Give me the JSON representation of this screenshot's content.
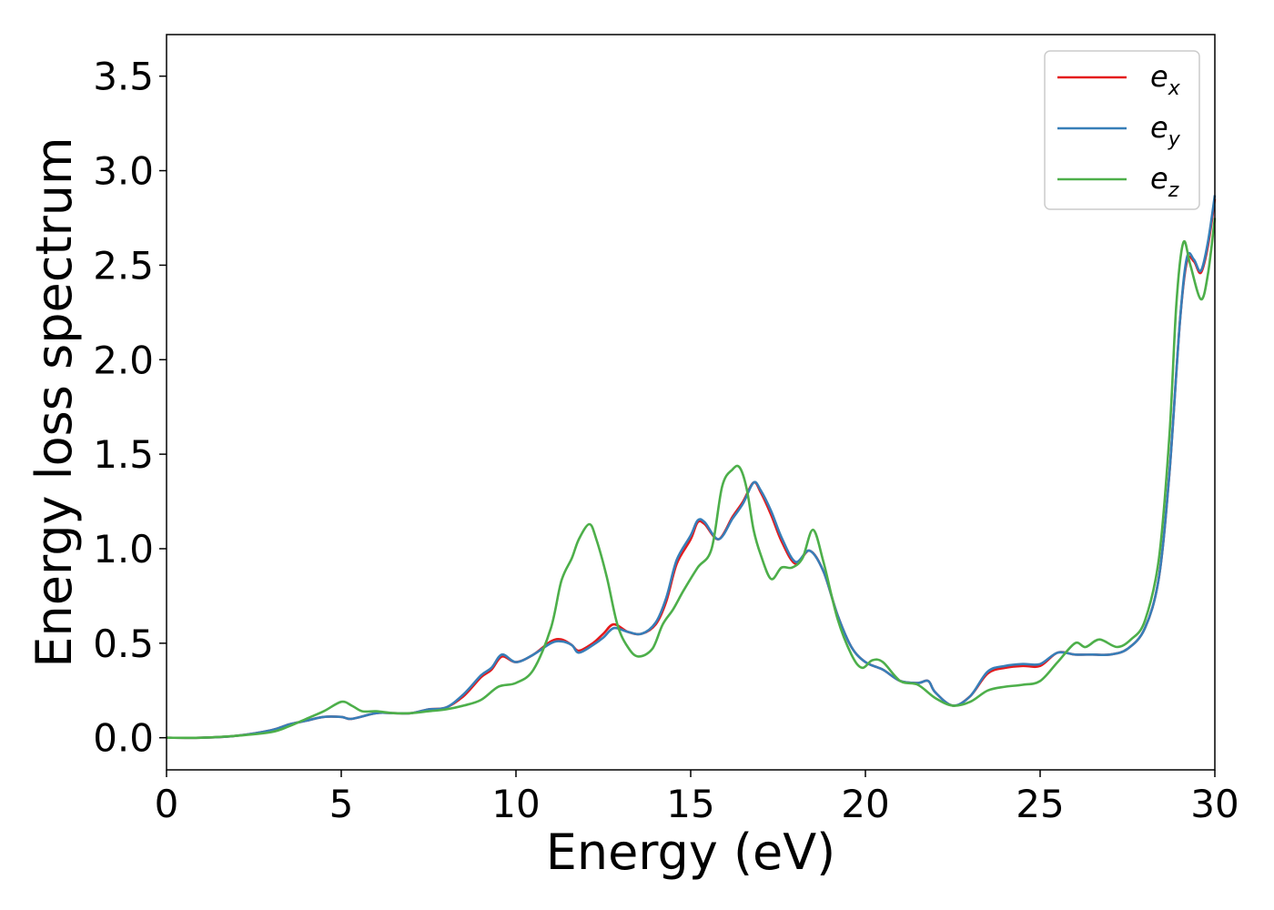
{
  "chart_data": {
    "type": "line",
    "xlabel": "Energy (eV)",
    "ylabel": "Energy loss spectrum",
    "xlim": [
      0,
      30
    ],
    "ylim": [
      -0.17,
      3.72
    ],
    "x_ticks": [
      "0",
      "5",
      "10",
      "15",
      "20",
      "25",
      "30"
    ],
    "y_ticks": [
      "0.0",
      "0.5",
      "1.0",
      "1.5",
      "2.0",
      "2.5",
      "3.0",
      "3.5"
    ],
    "grid": false,
    "legend_position": "top-right",
    "series": [
      {
        "name": "e_x",
        "base": "e",
        "sub": "x",
        "color": "#e41a1c",
        "points": [
          [
            0,
            0
          ],
          [
            1,
            0
          ],
          [
            2,
            0.01
          ],
          [
            3,
            0.04
          ],
          [
            3.5,
            0.07
          ],
          [
            4,
            0.09
          ],
          [
            4.5,
            0.11
          ],
          [
            5,
            0.11
          ],
          [
            5.3,
            0.1
          ],
          [
            6,
            0.13
          ],
          [
            6.5,
            0.13
          ],
          [
            7,
            0.13
          ],
          [
            7.5,
            0.15
          ],
          [
            8,
            0.16
          ],
          [
            8.5,
            0.22
          ],
          [
            9,
            0.32
          ],
          [
            9.3,
            0.36
          ],
          [
            9.6,
            0.43
          ],
          [
            10,
            0.4
          ],
          [
            10.5,
            0.44
          ],
          [
            11,
            0.51
          ],
          [
            11.3,
            0.52
          ],
          [
            11.6,
            0.49
          ],
          [
            11.8,
            0.46
          ],
          [
            12.2,
            0.5
          ],
          [
            12.5,
            0.55
          ],
          [
            12.8,
            0.6
          ],
          [
            13.2,
            0.56
          ],
          [
            13.6,
            0.55
          ],
          [
            14,
            0.6
          ],
          [
            14.3,
            0.72
          ],
          [
            14.6,
            0.92
          ],
          [
            15,
            1.05
          ],
          [
            15.2,
            1.14
          ],
          [
            15.4,
            1.13
          ],
          [
            15.8,
            1.05
          ],
          [
            16.2,
            1.17
          ],
          [
            16.5,
            1.25
          ],
          [
            16.8,
            1.35
          ],
          [
            17,
            1.3
          ],
          [
            17.3,
            1.18
          ],
          [
            17.6,
            1.04
          ],
          [
            18,
            0.92
          ],
          [
            18.4,
            0.99
          ],
          [
            18.8,
            0.88
          ],
          [
            19.2,
            0.65
          ],
          [
            19.6,
            0.48
          ],
          [
            20,
            0.4
          ],
          [
            20.5,
            0.36
          ],
          [
            21,
            0.3
          ],
          [
            21.5,
            0.29
          ],
          [
            21.8,
            0.3
          ],
          [
            22,
            0.24
          ],
          [
            22.5,
            0.17
          ],
          [
            23,
            0.22
          ],
          [
            23.5,
            0.34
          ],
          [
            24,
            0.37
          ],
          [
            24.5,
            0.38
          ],
          [
            25,
            0.38
          ],
          [
            25.5,
            0.45
          ],
          [
            26,
            0.44
          ],
          [
            26.5,
            0.44
          ],
          [
            27,
            0.44
          ],
          [
            27.5,
            0.47
          ],
          [
            28,
            0.58
          ],
          [
            28.4,
            0.85
          ],
          [
            28.7,
            1.4
          ],
          [
            29,
            2.2
          ],
          [
            29.2,
            2.52
          ],
          [
            29.4,
            2.52
          ],
          [
            29.6,
            2.46
          ],
          [
            29.8,
            2.6
          ],
          [
            30,
            2.85
          ]
        ]
      },
      {
        "name": "e_y",
        "base": "e",
        "sub": "y",
        "color": "#377eb8",
        "points": [
          [
            0,
            0
          ],
          [
            1,
            0
          ],
          [
            2,
            0.01
          ],
          [
            3,
            0.04
          ],
          [
            3.5,
            0.07
          ],
          [
            4,
            0.09
          ],
          [
            4.5,
            0.11
          ],
          [
            5,
            0.11
          ],
          [
            5.3,
            0.1
          ],
          [
            6,
            0.13
          ],
          [
            6.5,
            0.13
          ],
          [
            7,
            0.13
          ],
          [
            7.5,
            0.15
          ],
          [
            8,
            0.16
          ],
          [
            8.5,
            0.23
          ],
          [
            9,
            0.33
          ],
          [
            9.3,
            0.37
          ],
          [
            9.6,
            0.44
          ],
          [
            10,
            0.4
          ],
          [
            10.5,
            0.44
          ],
          [
            11,
            0.5
          ],
          [
            11.3,
            0.51
          ],
          [
            11.6,
            0.49
          ],
          [
            11.8,
            0.45
          ],
          [
            12.2,
            0.49
          ],
          [
            12.5,
            0.53
          ],
          [
            12.8,
            0.58
          ],
          [
            13.2,
            0.56
          ],
          [
            13.6,
            0.55
          ],
          [
            14,
            0.61
          ],
          [
            14.3,
            0.74
          ],
          [
            14.6,
            0.94
          ],
          [
            15,
            1.07
          ],
          [
            15.2,
            1.15
          ],
          [
            15.4,
            1.14
          ],
          [
            15.8,
            1.05
          ],
          [
            16.2,
            1.16
          ],
          [
            16.5,
            1.24
          ],
          [
            16.8,
            1.35
          ],
          [
            17,
            1.31
          ],
          [
            17.3,
            1.2
          ],
          [
            17.6,
            1.06
          ],
          [
            18,
            0.93
          ],
          [
            18.4,
            0.99
          ],
          [
            18.8,
            0.88
          ],
          [
            19.2,
            0.65
          ],
          [
            19.6,
            0.48
          ],
          [
            20,
            0.4
          ],
          [
            20.5,
            0.36
          ],
          [
            21,
            0.3
          ],
          [
            21.5,
            0.29
          ],
          [
            21.8,
            0.3
          ],
          [
            22,
            0.24
          ],
          [
            22.5,
            0.17
          ],
          [
            23,
            0.22
          ],
          [
            23.5,
            0.35
          ],
          [
            24,
            0.38
          ],
          [
            24.5,
            0.39
          ],
          [
            25,
            0.39
          ],
          [
            25.5,
            0.45
          ],
          [
            26,
            0.44
          ],
          [
            26.5,
            0.44
          ],
          [
            27,
            0.44
          ],
          [
            27.5,
            0.47
          ],
          [
            28,
            0.58
          ],
          [
            28.4,
            0.85
          ],
          [
            28.7,
            1.4
          ],
          [
            29,
            2.2
          ],
          [
            29.2,
            2.54
          ],
          [
            29.4,
            2.53
          ],
          [
            29.6,
            2.47
          ],
          [
            29.8,
            2.62
          ],
          [
            30,
            2.87
          ]
        ]
      },
      {
        "name": "e_z",
        "base": "e",
        "sub": "z",
        "color": "#4daf4a",
        "points": [
          [
            0,
            0
          ],
          [
            1,
            0
          ],
          [
            2,
            0.01
          ],
          [
            3,
            0.03
          ],
          [
            3.5,
            0.06
          ],
          [
            4,
            0.1
          ],
          [
            4.5,
            0.14
          ],
          [
            5,
            0.19
          ],
          [
            5.3,
            0.17
          ],
          [
            5.6,
            0.14
          ],
          [
            6,
            0.14
          ],
          [
            6.5,
            0.13
          ],
          [
            7,
            0.13
          ],
          [
            7.5,
            0.14
          ],
          [
            8,
            0.15
          ],
          [
            8.5,
            0.17
          ],
          [
            9,
            0.2
          ],
          [
            9.5,
            0.27
          ],
          [
            10,
            0.29
          ],
          [
            10.5,
            0.36
          ],
          [
            11,
            0.58
          ],
          [
            11.3,
            0.83
          ],
          [
            11.6,
            0.95
          ],
          [
            11.8,
            1.05
          ],
          [
            12.1,
            1.13
          ],
          [
            12.3,
            1.05
          ],
          [
            12.6,
            0.85
          ],
          [
            12.9,
            0.6
          ],
          [
            13.2,
            0.48
          ],
          [
            13.5,
            0.43
          ],
          [
            13.9,
            0.47
          ],
          [
            14.2,
            0.6
          ],
          [
            14.5,
            0.68
          ],
          [
            14.8,
            0.78
          ],
          [
            15.2,
            0.9
          ],
          [
            15.6,
            1.0
          ],
          [
            15.9,
            1.33
          ],
          [
            16.2,
            1.42
          ],
          [
            16.4,
            1.43
          ],
          [
            16.6,
            1.32
          ],
          [
            16.8,
            1.1
          ],
          [
            17,
            0.97
          ],
          [
            17.3,
            0.84
          ],
          [
            17.6,
            0.9
          ],
          [
            17.9,
            0.9
          ],
          [
            18.2,
            0.95
          ],
          [
            18.5,
            1.1
          ],
          [
            18.8,
            0.93
          ],
          [
            19.2,
            0.63
          ],
          [
            19.6,
            0.44
          ],
          [
            19.9,
            0.37
          ],
          [
            20.2,
            0.41
          ],
          [
            20.5,
            0.4
          ],
          [
            21,
            0.3
          ],
          [
            21.5,
            0.28
          ],
          [
            22,
            0.21
          ],
          [
            22.5,
            0.17
          ],
          [
            23,
            0.19
          ],
          [
            23.5,
            0.25
          ],
          [
            24,
            0.27
          ],
          [
            24.5,
            0.28
          ],
          [
            25,
            0.3
          ],
          [
            25.5,
            0.4
          ],
          [
            26,
            0.5
          ],
          [
            26.3,
            0.48
          ],
          [
            26.7,
            0.52
          ],
          [
            27.2,
            0.48
          ],
          [
            27.6,
            0.52
          ],
          [
            28,
            0.62
          ],
          [
            28.4,
            0.95
          ],
          [
            28.7,
            1.6
          ],
          [
            28.9,
            2.3
          ],
          [
            29.1,
            2.62
          ],
          [
            29.3,
            2.5
          ],
          [
            29.6,
            2.32
          ],
          [
            29.8,
            2.45
          ],
          [
            30,
            2.75
          ]
        ]
      }
    ]
  }
}
